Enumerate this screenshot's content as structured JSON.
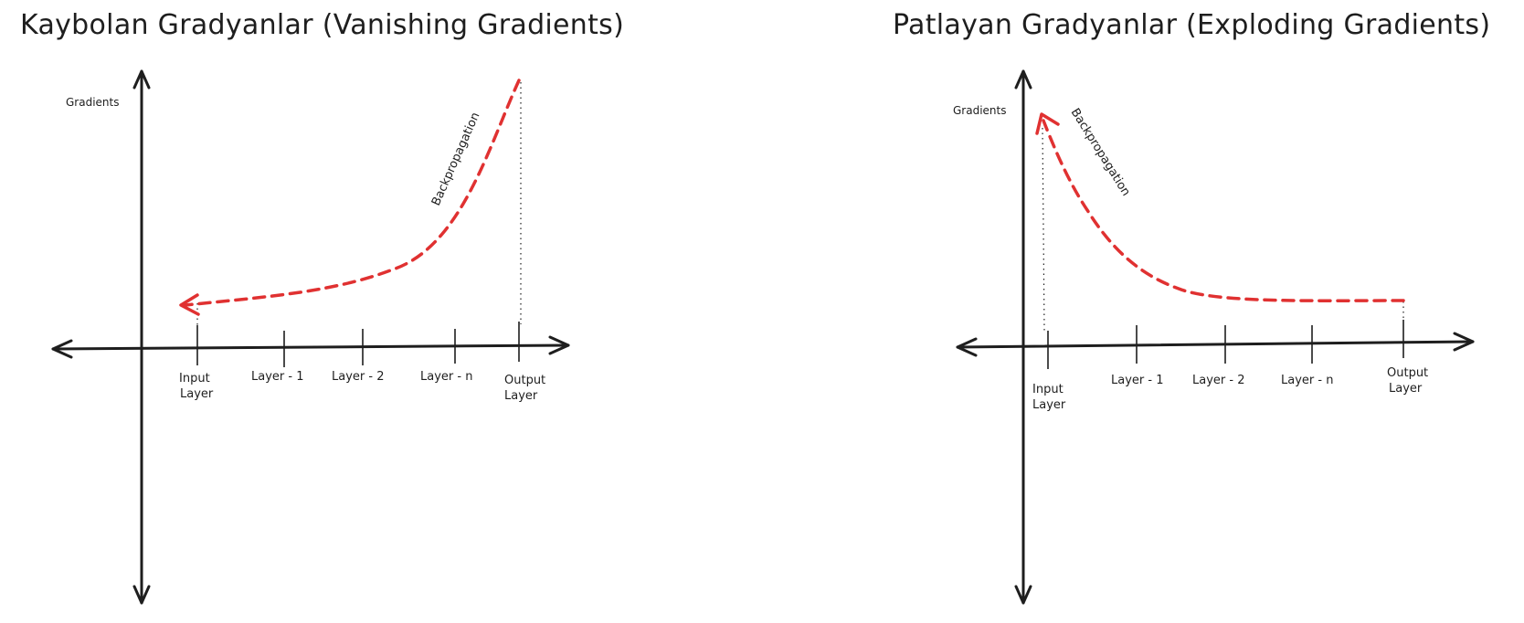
{
  "titles": {
    "left": "Kaybolan Gradyanlar (Vanishing Gradients)",
    "right": "Patlayan Gradyanlar (Exploding Gradients)"
  },
  "left_diagram": {
    "y_axis_label": "Gradients",
    "backprop_label": "Backpropagation",
    "x_labels": {
      "input_line1": "Input",
      "input_line2": "Layer",
      "layer1": "Layer - 1",
      "layer2": "Layer - 2",
      "layern": "Layer - n",
      "output_line1": "Output",
      "output_line2": "Layer"
    }
  },
  "right_diagram": {
    "y_axis_label": "Gradients",
    "backprop_label": "Backpropagation",
    "x_labels": {
      "input_line1": "Input",
      "input_line2": "Layer",
      "layer1": "Layer - 1",
      "layer2": "Layer - 2",
      "layern": "Layer - n",
      "output_line1": "Output",
      "output_line2": "Layer"
    }
  },
  "colors": {
    "curve": "#e03131",
    "axis": "#1e1e1e",
    "background": "#ffffff"
  }
}
